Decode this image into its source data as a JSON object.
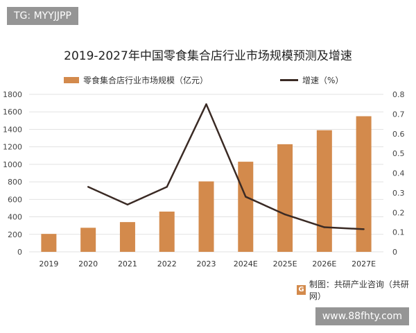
{
  "watermark_top": "TG: MYYJJPP",
  "watermark_bottom": "www.88fhty.com",
  "source": "制图：共研产业咨询（共研网）",
  "source_logo": "G",
  "chart_data": {
    "type": "bar+line",
    "title": "2019-2027年中国零食集合店行业市场规模预测及增速",
    "categories": [
      "2019",
      "2020",
      "2021",
      "2022",
      "2023",
      "2024E",
      "2025E",
      "2026E",
      "2027E"
    ],
    "series": [
      {
        "name": "零食集合店行业市场规模（亿元）",
        "type": "bar",
        "axis": "left",
        "color": "#d38a4c",
        "values": [
          205,
          275,
          340,
          460,
          805,
          1030,
          1230,
          1390,
          1550
        ]
      },
      {
        "name": "增速（%）",
        "type": "line",
        "axis": "right",
        "color": "#3a2a24",
        "values": [
          null,
          0.33,
          0.24,
          0.33,
          0.75,
          0.28,
          0.19,
          0.125,
          0.115
        ]
      }
    ],
    "ylim_left": [
      0,
      1800
    ],
    "yticks_left": [
      "0",
      "200",
      "400",
      "600",
      "800",
      "1000",
      "1200",
      "1400",
      "1600",
      "1800"
    ],
    "ylim_right": [
      0,
      0.8
    ],
    "yticks_right": [
      "0",
      "0.1",
      "0.2",
      "0.3",
      "0.4",
      "0.5",
      "0.6",
      "0.7",
      "0.8"
    ],
    "grid": true,
    "legend": "top"
  }
}
